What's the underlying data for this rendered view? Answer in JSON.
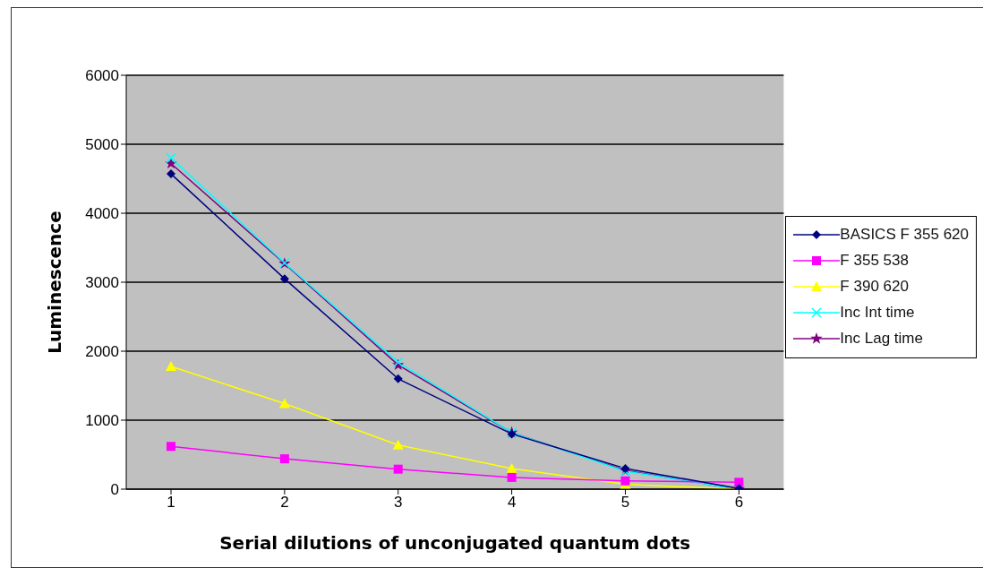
{
  "chart_data": {
    "type": "line",
    "xlabel": "Serial dilutions of unconjugated quantum dots",
    "ylabel": "Luminescence",
    "categories": [
      "1",
      "2",
      "3",
      "4",
      "5",
      "6"
    ],
    "series": [
      {
        "name": "BASICS F 355 620",
        "color": "#000080",
        "marker": "diamond",
        "values": [
          4570,
          3050,
          1600,
          800,
          300,
          10
        ]
      },
      {
        "name": "F 355 538",
        "color": "#ff00ff",
        "marker": "square",
        "values": [
          620,
          440,
          290,
          170,
          120,
          100
        ]
      },
      {
        "name": "F 390 620",
        "color": "#ffff00",
        "marker": "triangle",
        "values": [
          1780,
          1240,
          640,
          300,
          70,
          0
        ]
      },
      {
        "name": "Inc Int time",
        "color": "#00ffff",
        "marker": "cross",
        "values": [
          4800,
          3280,
          1840,
          820,
          260,
          0
        ]
      },
      {
        "name": "Inc Lag time",
        "color": "#800080",
        "marker": "star",
        "values": [
          4720,
          3270,
          1800,
          820,
          270,
          0
        ]
      }
    ],
    "ylim": [
      0,
      6000
    ],
    "yticks": [
      0,
      1000,
      2000,
      3000,
      4000,
      5000,
      6000
    ],
    "grid": "y",
    "legend": "right"
  }
}
